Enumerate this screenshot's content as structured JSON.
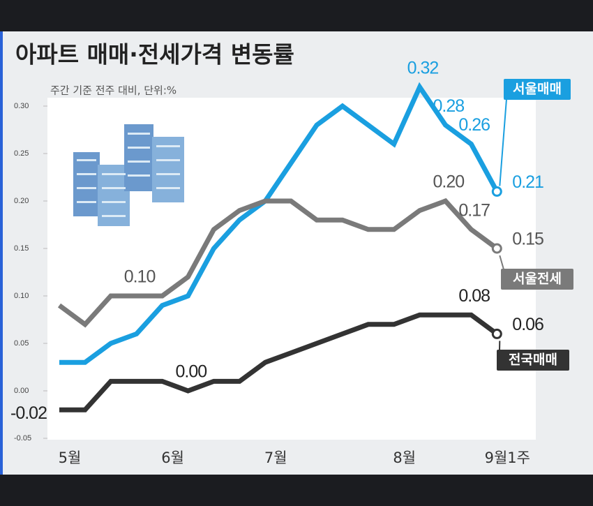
{
  "chart_data": {
    "type": "line",
    "title": "아파트 매매·전세가격 변동률",
    "subtitle": "주간 기준 전주 대비, 단위:%",
    "categories": [
      "5월",
      null,
      null,
      null,
      "6월",
      null,
      null,
      null,
      "7월",
      null,
      null,
      null,
      null,
      "8월",
      null,
      null,
      null,
      "9월1주"
    ],
    "ylim": [
      -0.05,
      0.3
    ],
    "yticks": [
      {
        "value": 0.3,
        "label": "0.30"
      },
      0.25,
      {
        "value": 0.2,
        "label": "0.20"
      },
      0.15,
      {
        "value": 0.1,
        "label": "0.10"
      },
      0.05,
      {
        "value": 0.0,
        "label": "0.00"
      },
      -0.05
    ],
    "grid": false,
    "series": [
      {
        "name": "서울매매",
        "color": "#1a9fe0",
        "values": [
          0.03,
          0.03,
          0.05,
          0.06,
          0.09,
          0.1,
          0.15,
          0.18,
          0.2,
          0.24,
          0.28,
          0.3,
          0.28,
          0.26,
          0.32,
          0.28,
          0.26,
          0.21
        ],
        "value_labels": [
          null,
          null,
          null,
          null,
          null,
          null,
          null,
          null,
          null,
          null,
          null,
          null,
          null,
          null,
          "0.32",
          "0.28",
          "0.26",
          "0.21"
        ]
      },
      {
        "name": "서울전세",
        "color": "#7a7a7a",
        "values": [
          0.09,
          0.07,
          0.1,
          0.1,
          0.1,
          0.12,
          0.17,
          0.19,
          0.2,
          0.2,
          0.18,
          0.18,
          0.17,
          0.17,
          0.19,
          0.2,
          0.17,
          0.15
        ],
        "value_labels": [
          null,
          null,
          null,
          "0.10",
          null,
          null,
          null,
          null,
          null,
          null,
          null,
          null,
          null,
          null,
          null,
          "0.20",
          "0.17",
          "0.15"
        ]
      },
      {
        "name": "전국매매",
        "color": "#333333",
        "values": [
          -0.02,
          -0.02,
          0.01,
          0.01,
          0.01,
          0.0,
          0.01,
          0.01,
          0.03,
          0.04,
          0.05,
          0.06,
          0.07,
          0.07,
          0.08,
          0.08,
          0.08,
          0.06
        ],
        "value_labels": [
          "-0.02",
          null,
          null,
          null,
          null,
          "0.00",
          null,
          null,
          null,
          null,
          null,
          null,
          null,
          null,
          null,
          null,
          "0.08",
          "0.06"
        ]
      }
    ]
  }
}
